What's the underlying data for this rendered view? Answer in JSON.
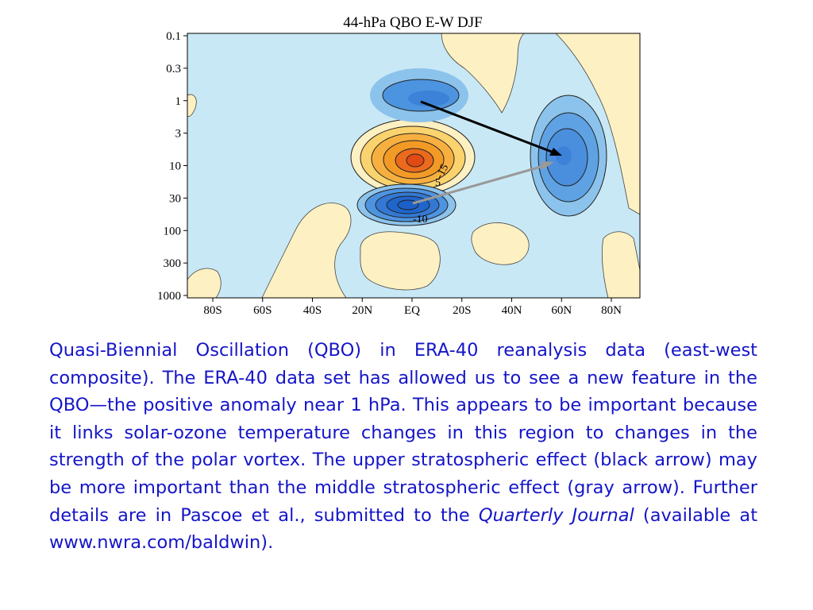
{
  "chart_data": {
    "type": "heatmap",
    "title": "44-hPa QBO E-W DJF",
    "xlabel": "",
    "ylabel": "",
    "x_ticks": [
      "80S",
      "60S",
      "40S",
      "20N",
      "EQ",
      "20S",
      "40N",
      "60N",
      "80N"
    ],
    "y_ticks": [
      "0.1",
      "0.3",
      "1",
      "3",
      "10",
      "30",
      "100",
      "300",
      "1000"
    ],
    "y_scale": "log",
    "y_direction": "pressure decreasing upward",
    "grid": false,
    "contour_labels": [
      "-15",
      "5",
      "-10"
    ],
    "colors": {
      "neg_deep": "#1b5fc9",
      "neg_mid": "#4d94e0",
      "neg_light": "#8cc3ec",
      "neutral_cool": "#c9e8f5",
      "neutral_warm": "#fdf0c2",
      "pos_light": "#fbd36e",
      "pos_mid": "#f39a26",
      "pos_deep": "#e24a14",
      "black_arrow": "#000000",
      "gray_arrow": "#999999"
    },
    "annotations": [
      {
        "name": "black arrow",
        "from_region": "near 1 hPa over EQ",
        "to_region": "near 10 hPa at 60N",
        "color": "black"
      },
      {
        "name": "gray arrow",
        "from_region": "near 30 hPa over EQ",
        "to_region": "near 10 hPa at 60N",
        "color": "gray"
      }
    ]
  },
  "caption": {
    "text_before_italic": "Quasi-Biennial Oscillation (QBO) in ERA-40 reanalysis data (east-west composite). The ERA-40 data set has allowed us to see a new feature in the QBO—the positive anomaly near 1 hPa. This appears to be important because it links solar-ozone temperature changes in this region to changes in the strength of the polar vortex. The upper stratospheric effect (black arrow) may be more important than the middle stratospheric effect (gray arrow). Further details are in Pascoe et al., submitted to the ",
    "italic": "Quarterly Journal",
    "text_after_italic": " (available at www.nwra.com/baldwin)."
  }
}
